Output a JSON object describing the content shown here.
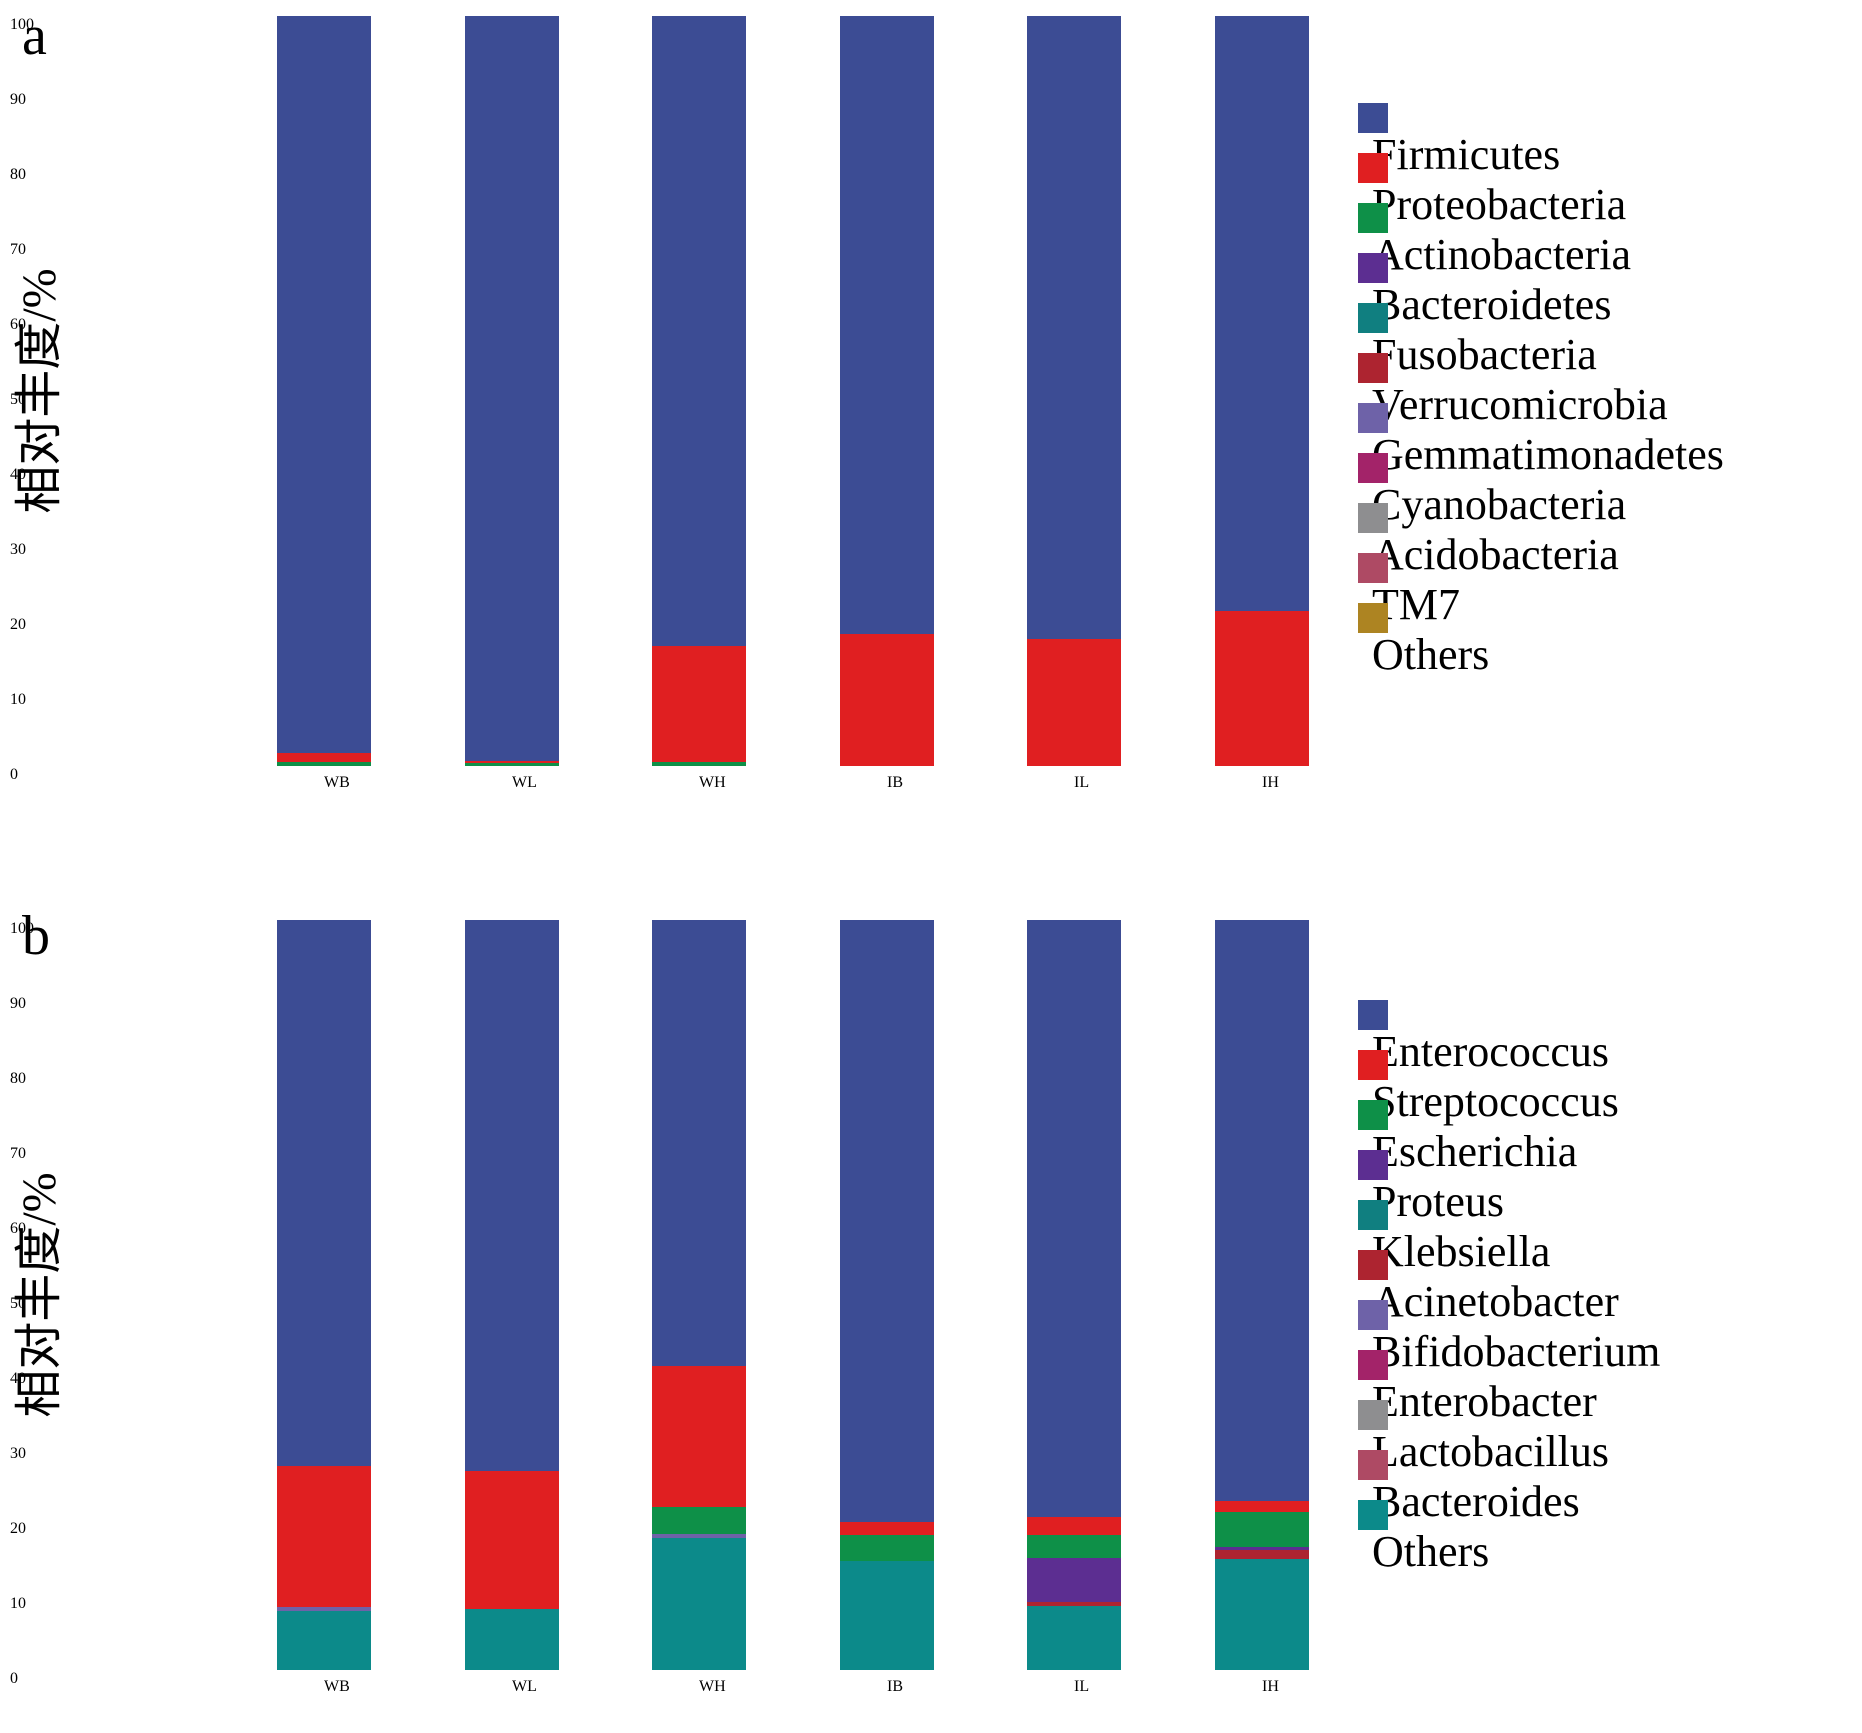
{
  "figure": {
    "panel_a_letter": "a",
    "panel_b_letter": "b",
    "y_axis_label": "相对丰度/%"
  },
  "chart_data": [
    {
      "panel": "a",
      "type": "bar",
      "stacked": true,
      "ylabel": "相对丰度/%",
      "ylim": [
        0,
        100
      ],
      "yticks": [
        0,
        10,
        20,
        30,
        40,
        50,
        60,
        70,
        80,
        90,
        100
      ],
      "categories": [
        "WB",
        "WL",
        "WH",
        "IB",
        "IL",
        "IH"
      ],
      "grid": false,
      "legend_position": "right",
      "legend": [
        {
          "label": "Firmicutes",
          "color": "#3c4c94",
          "italic": false
        },
        {
          "label": "Proteobacteria",
          "color": "#e01f21",
          "italic": false
        },
        {
          "label": "Actinobacteria",
          "color": "#0e9048",
          "italic": false
        },
        {
          "label": "Bacteroidetes",
          "color": "#5c2e91",
          "italic": false
        },
        {
          "label": "Fusobacteria",
          "color": "#107f80",
          "italic": false
        },
        {
          "label": "Verrucomicrobia",
          "color": "#ad2430",
          "italic": false
        },
        {
          "label": "Gemmatimonadetes",
          "color": "#6e62a8",
          "italic": false
        },
        {
          "label": "Cyanobacteria",
          "color": "#a32369",
          "italic": false
        },
        {
          "label": "Acidobacteria",
          "color": "#8e8e90",
          "italic": false
        },
        {
          "label": "TM7",
          "color": "#ae4a64",
          "italic": false
        },
        {
          "label": "Others",
          "color": "#ad8422",
          "italic": false
        }
      ],
      "series": [
        {
          "name": "Firmicutes",
          "values": [
            98.3,
            99.3,
            84.0,
            82.4,
            83.1,
            79.3
          ]
        },
        {
          "name": "Proteobacteria",
          "values": [
            1.2,
            0.3,
            15.4,
            17.6,
            16.9,
            20.7
          ]
        },
        {
          "name": "Actinobacteria",
          "values": [
            0.5,
            0.4,
            0.6,
            0,
            0,
            0
          ]
        },
        {
          "name": "Bacteroidetes",
          "values": [
            0,
            0,
            0,
            0,
            0,
            0
          ]
        },
        {
          "name": "Fusobacteria",
          "values": [
            0,
            0,
            0,
            0,
            0,
            0
          ]
        },
        {
          "name": "Verrucomicrobia",
          "values": [
            0,
            0,
            0,
            0,
            0,
            0
          ]
        },
        {
          "name": "Gemmatimonadetes",
          "values": [
            0,
            0,
            0,
            0,
            0,
            0
          ]
        },
        {
          "name": "Cyanobacteria",
          "values": [
            0,
            0,
            0,
            0,
            0,
            0
          ]
        },
        {
          "name": "Acidobacteria",
          "values": [
            0,
            0,
            0,
            0,
            0,
            0
          ]
        },
        {
          "name": "TM7",
          "values": [
            0,
            0,
            0,
            0,
            0,
            0
          ]
        },
        {
          "name": "Others",
          "values": [
            0,
            0,
            0,
            0,
            0,
            0
          ]
        }
      ]
    },
    {
      "panel": "b",
      "type": "bar",
      "stacked": true,
      "ylabel": "相对丰度/%",
      "ylim": [
        0,
        100
      ],
      "yticks": [
        0,
        10,
        20,
        30,
        40,
        50,
        60,
        70,
        80,
        90,
        100
      ],
      "categories": [
        "WB",
        "WL",
        "WH",
        "IB",
        "IL",
        "IH"
      ],
      "grid": false,
      "legend_position": "right",
      "legend": [
        {
          "label": "Enterococcus",
          "color": "#3c4c94",
          "italic": true
        },
        {
          "label": "Streptococcus",
          "color": "#e01f21",
          "italic": true
        },
        {
          "label": "Escherichia",
          "color": "#0e9048",
          "italic": true
        },
        {
          "label": "Proteus",
          "color": "#5c2e91",
          "italic": true
        },
        {
          "label": "Klebsiella",
          "color": "#107f80",
          "italic": true
        },
        {
          "label": "Acinetobacter",
          "color": "#ad2430",
          "italic": true
        },
        {
          "label": "Bifidobacterium",
          "color": "#6e62a8",
          "italic": true
        },
        {
          "label": "Enterobacter",
          "color": "#a32369",
          "italic": true
        },
        {
          "label": "Lactobacillus",
          "color": "#8e8e90",
          "italic": true
        },
        {
          "label": "Bacteroides",
          "color": "#ae4a64",
          "italic": true
        },
        {
          "label": "Others",
          "color": "#0c8a8a",
          "italic": false
        }
      ],
      "series": [
        {
          "name": "Enterococcus",
          "values": [
            72.8,
            73.5,
            59.4,
            80.3,
            79.6,
            77.5
          ]
        },
        {
          "name": "Streptococcus",
          "values": [
            18.8,
            18.3,
            18.9,
            1.7,
            2.4,
            1.4
          ]
        },
        {
          "name": "Escherichia",
          "values": [
            0,
            0,
            3.5,
            3.4,
            3.0,
            4.7
          ]
        },
        {
          "name": "Proteus",
          "values": [
            0,
            0,
            0,
            0,
            5.9,
            0.4
          ]
        },
        {
          "name": "Klebsiella",
          "values": [
            0,
            0,
            0,
            0,
            0,
            0
          ]
        },
        {
          "name": "Acinetobacter",
          "values": [
            0,
            0,
            0,
            0,
            0.5,
            1.2
          ]
        },
        {
          "name": "Bifidobacterium",
          "values": [
            0.5,
            0,
            0.6,
            0,
            0,
            0
          ]
        },
        {
          "name": "Enterobacter",
          "values": [
            0,
            0,
            0,
            0,
            0,
            0
          ]
        },
        {
          "name": "Lactobacillus",
          "values": [
            0,
            0,
            0,
            0,
            0,
            0
          ]
        },
        {
          "name": "Bacteroides",
          "values": [
            0,
            0,
            0,
            0,
            0,
            0
          ]
        },
        {
          "name": "Others",
          "values": [
            7.9,
            8.2,
            17.6,
            14.6,
            8.6,
            14.8
          ]
        }
      ]
    }
  ]
}
